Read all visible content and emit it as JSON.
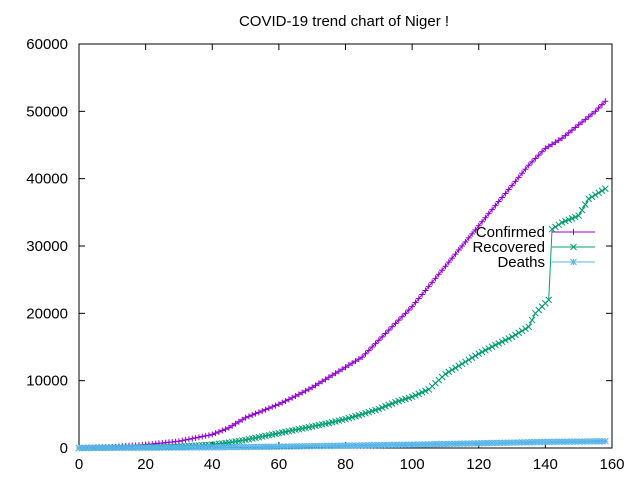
{
  "chart_data": {
    "type": "line",
    "title": "COVID-19 trend chart of Niger !",
    "xlabel": "",
    "ylabel": "",
    "xlim": [
      0,
      160
    ],
    "ylim": [
      0,
      60000
    ],
    "xticks": [
      0,
      20,
      40,
      60,
      80,
      100,
      120,
      140,
      160
    ],
    "yticks": [
      0,
      10000,
      20000,
      30000,
      40000,
      50000,
      60000
    ],
    "grid": false,
    "legend_position": "right",
    "series": [
      {
        "name": "Confirmed",
        "color": "#9400d3",
        "marker": "plus",
        "points": [
          [
            0,
            0
          ],
          [
            10,
            150
          ],
          [
            20,
            500
          ],
          [
            30,
            1000
          ],
          [
            40,
            2000
          ],
          [
            45,
            3000
          ],
          [
            50,
            4500
          ],
          [
            55,
            5500
          ],
          [
            60,
            6500
          ],
          [
            65,
            7700
          ],
          [
            70,
            9000
          ],
          [
            75,
            10500
          ],
          [
            80,
            12000
          ],
          [
            85,
            13500
          ],
          [
            90,
            16000
          ],
          [
            95,
            18500
          ],
          [
            100,
            21000
          ],
          [
            105,
            24000
          ],
          [
            110,
            27000
          ],
          [
            115,
            30000
          ],
          [
            120,
            33000
          ],
          [
            125,
            36000
          ],
          [
            130,
            39000
          ],
          [
            135,
            42000
          ],
          [
            140,
            44500
          ],
          [
            145,
            46000
          ],
          [
            150,
            48000
          ],
          [
            155,
            50000
          ],
          [
            158,
            51500
          ]
        ]
      },
      {
        "name": "Recovered",
        "color": "#009e73",
        "marker": "x",
        "points": [
          [
            0,
            0
          ],
          [
            10,
            50
          ],
          [
            20,
            100
          ],
          [
            30,
            200
          ],
          [
            40,
            500
          ],
          [
            45,
            800
          ],
          [
            50,
            1200
          ],
          [
            55,
            1700
          ],
          [
            60,
            2200
          ],
          [
            65,
            2700
          ],
          [
            70,
            3200
          ],
          [
            75,
            3700
          ],
          [
            80,
            4300
          ],
          [
            85,
            5000
          ],
          [
            90,
            5800
          ],
          [
            95,
            6800
          ],
          [
            100,
            7600
          ],
          [
            105,
            8700
          ],
          [
            110,
            11000
          ],
          [
            115,
            12500
          ],
          [
            120,
            14000
          ],
          [
            125,
            15300
          ],
          [
            130,
            16500
          ],
          [
            135,
            18000
          ],
          [
            137,
            20000
          ],
          [
            141,
            22000
          ],
          [
            142,
            32500
          ],
          [
            145,
            33500
          ],
          [
            150,
            34500
          ],
          [
            153,
            37000
          ],
          [
            158,
            38500
          ]
        ]
      },
      {
        "name": "Deaths",
        "color": "#56b4e9",
        "marker": "star",
        "points": [
          [
            0,
            0
          ],
          [
            20,
            50
          ],
          [
            40,
            100
          ],
          [
            60,
            200
          ],
          [
            80,
            350
          ],
          [
            100,
            500
          ],
          [
            120,
            700
          ],
          [
            140,
            900
          ],
          [
            158,
            1000
          ]
        ]
      }
    ]
  }
}
